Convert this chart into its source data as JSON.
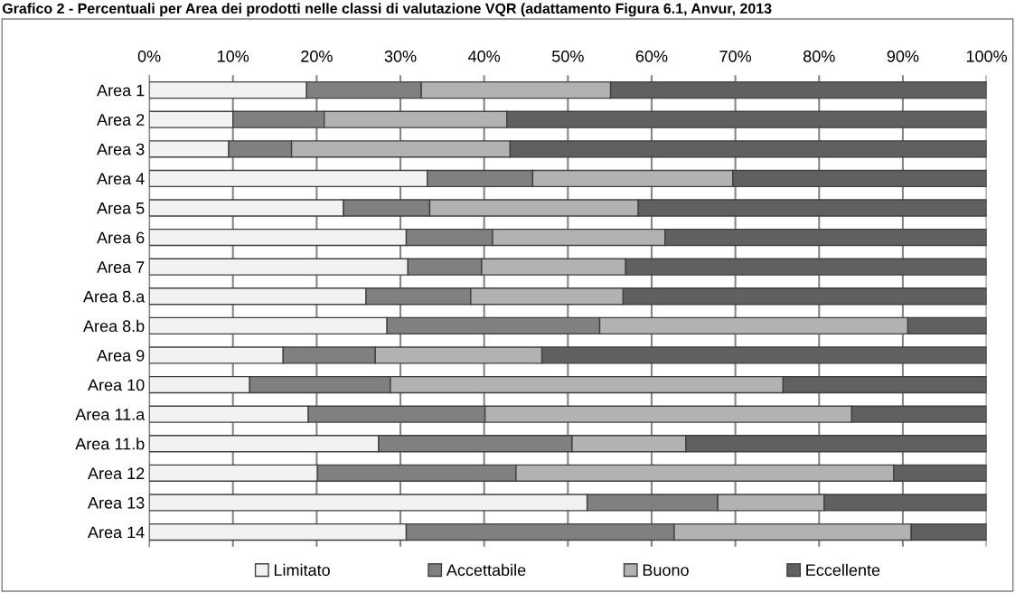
{
  "chart_data": {
    "type": "bar",
    "orientation": "horizontal",
    "stacked": true,
    "title": "Grafico 2 - Percentuali per Area dei prodotti nelle classi di valutazione VQR (adattamento Figura 6.1, Anvur, 2013",
    "categories": [
      "Area 1",
      "Area 2",
      "Area 3",
      "Area 4",
      "Area 5",
      "Area 6",
      "Area 7",
      "Area 8.a",
      "Area 8.b",
      "Area 9",
      "Area 10",
      "Area 11.a",
      "Area 11.b",
      "Area 12",
      "Area 13",
      "Area 14"
    ],
    "series": [
      {
        "name": "Limitato",
        "color": "#f2f2f2",
        "values": [
          18.8,
          10.0,
          9.5,
          33.2,
          23.2,
          30.7,
          30.9,
          25.9,
          28.4,
          16.0,
          12.0,
          19.0,
          27.4,
          20.1,
          52.3,
          30.7
        ]
      },
      {
        "name": "Accettabile",
        "color": "#808080",
        "values": [
          13.7,
          10.9,
          7.5,
          12.6,
          10.3,
          10.3,
          8.8,
          12.5,
          25.4,
          11.0,
          16.8,
          21.1,
          23.1,
          23.7,
          15.6,
          32.0
        ]
      },
      {
        "name": "Buono",
        "color": "#b2b2b2",
        "values": [
          22.6,
          21.8,
          26.1,
          23.9,
          24.9,
          20.6,
          17.2,
          18.2,
          36.8,
          19.9,
          46.9,
          43.8,
          13.6,
          45.1,
          12.7,
          28.3
        ]
      },
      {
        "name": "Eccellente",
        "color": "#606060",
        "values": [
          44.9,
          57.3,
          56.9,
          30.3,
          41.6,
          38.4,
          43.1,
          43.4,
          9.4,
          53.1,
          24.3,
          16.1,
          35.9,
          11.1,
          19.4,
          9.0
        ]
      }
    ],
    "xlim": [
      0,
      100
    ],
    "xticks": [
      {
        "value": 0,
        "label": "0%"
      },
      {
        "value": 10,
        "label": "10%"
      },
      {
        "value": 20,
        "label": "20%"
      },
      {
        "value": 30,
        "label": "30%"
      },
      {
        "value": 40,
        "label": "40%"
      },
      {
        "value": 50,
        "label": "50%"
      },
      {
        "value": 60,
        "label": "60%"
      },
      {
        "value": 70,
        "label": "70%"
      },
      {
        "value": 80,
        "label": "80%"
      },
      {
        "value": 90,
        "label": "90%"
      },
      {
        "value": 100,
        "label": "100%"
      }
    ],
    "grid": "x",
    "legend": "bottom"
  }
}
